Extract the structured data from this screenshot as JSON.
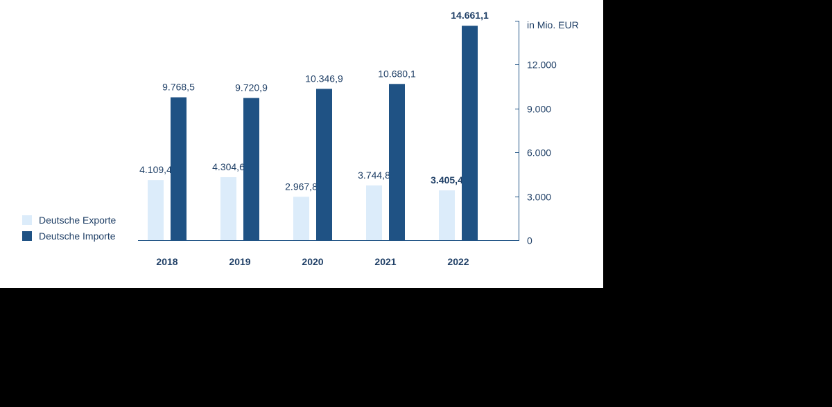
{
  "colors": {
    "exports": "#dcecfa",
    "imports": "#1f5284",
    "axis": "#1f5284",
    "text": "#1f3f66"
  },
  "legend": {
    "exports_label": "Deutsche Exporte",
    "imports_label": "Deutsche Importe"
  },
  "chart_data": {
    "type": "bar",
    "title": "",
    "xlabel": "",
    "ylabel": "in Mio. EUR",
    "ylim": [
      0,
      15000
    ],
    "yticks": [
      0,
      3000,
      6000,
      9000,
      12000
    ],
    "ytick_labels": [
      "0",
      "3.000",
      "6.000",
      "9.000",
      "12.000"
    ],
    "axis_position": "right",
    "legend_position": "bottom-left",
    "categories": [
      "2018",
      "2019",
      "2020",
      "2021",
      "2022"
    ],
    "series": [
      {
        "name": "Deutsche Exporte",
        "values": [
          4109.4,
          4304.6,
          2967.8,
          3744.8,
          3405.4
        ],
        "labels": [
          "4.109,4",
          "4.304,6",
          "2.967,8",
          "3.744,8",
          "3.405,4"
        ]
      },
      {
        "name": "Deutsche Importe",
        "values": [
          9768.5,
          9720.9,
          10346.9,
          10680.1,
          14661.1
        ],
        "labels": [
          "9.768,5",
          "9.720,9",
          "10.346,9",
          "10.680,1",
          "14.661,1"
        ]
      }
    ]
  }
}
